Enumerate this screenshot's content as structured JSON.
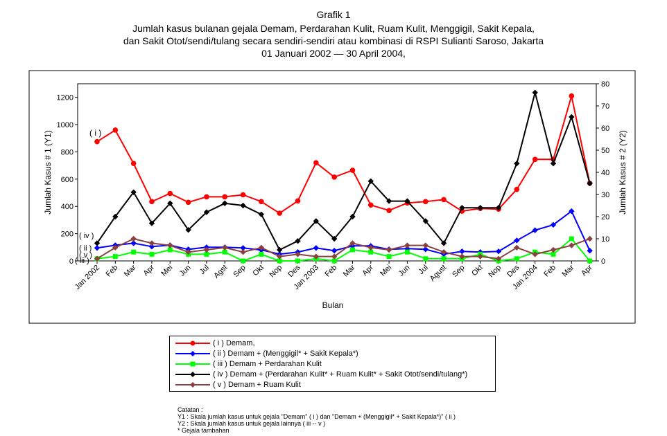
{
  "title": {
    "line1": "Grafik 1",
    "line2": "Jumlah kasus bulanan gejala Demam, Perdarahan Kulit, Ruam Kulit, Menggigil, Sakit Kepala,",
    "line3": "dan Sakit Otot/sendi/tulang secara sendiri-sendiri atau kombinasi di RSPI Sulianti Saroso, Jakarta",
    "line4": "01 Januari 2002 — 30 April 2004,"
  },
  "legend": [
    {
      "key": "i",
      "label": "( i ) Demam,"
    },
    {
      "key": "ii",
      "label": "( ii ) Demam + (Menggigil* + Sakit Kepala*)"
    },
    {
      "key": "iii",
      "label": "( iii ) Demam + Perdarahan Kulit"
    },
    {
      "key": "iv",
      "label": "( iv ) Demam + (Perdarahan Kulit* + Ruam Kulit* + Sakit Otot/sendi/tulang*)"
    },
    {
      "key": "v",
      "label": "( v ) Demam + Ruam Kulit"
    }
  ],
  "notes": {
    "line1": "Catatan :",
    "line2": "Y1 : Skala jumlah kasus untuk gejala \"Demam\" ( i )  dan \"Demam + (Menggigil* + Sakit Kepala*)\" ( ii )",
    "line3": "Y2 : Skala jumlah kasus untuk gejala lainnya ( iii -- v )",
    "line4": "* Gejala tambahan"
  },
  "chart_data": {
    "type": "line",
    "xlabel": "Bulan",
    "ylabel_left": "Jumlah Kasus # 1 (Y1)",
    "ylabel_right": "Jumlah Kasus # 2 (Y2)",
    "ylim_left": [
      0,
      1300
    ],
    "ylim_right": [
      0,
      80
    ],
    "yticks_left": [
      0,
      200,
      400,
      600,
      800,
      1000,
      1200
    ],
    "yticks_right": [
      0,
      10,
      20,
      30,
      40,
      50,
      60,
      70,
      80
    ],
    "grid": false,
    "categories": [
      "Jan 2002",
      "Feb",
      "Mar",
      "Apr",
      "Mei",
      "Jun",
      "Jul",
      "Agst",
      "Sep",
      "Okt",
      "Nop",
      "Des",
      "Jan 2003",
      "Feb",
      "Mar",
      "Apr",
      "Mei",
      "Jun",
      "Jul",
      "Agust",
      "Sep",
      "Okt",
      "Nop",
      "Des",
      "Jan 2004",
      "Feb",
      "Mar",
      "Apr"
    ],
    "series_labels": [
      "( i )",
      "( ii )",
      "( iii )",
      "( iv )",
      "( v )"
    ],
    "series": [
      {
        "key": "i",
        "axis": "left",
        "color": "#ff0000",
        "marker": "circle",
        "values": [
          875,
          960,
          715,
          435,
          495,
          430,
          470,
          470,
          485,
          435,
          350,
          440,
          720,
          615,
          665,
          410,
          370,
          425,
          435,
          450,
          365,
          385,
          380,
          525,
          745,
          745,
          1210,
          570
        ]
      },
      {
        "key": "ii",
        "axis": "left",
        "color": "#0000ff",
        "marker": "diamond",
        "values": [
          95,
          115,
          130,
          105,
          115,
          85,
          100,
          100,
          95,
          80,
          50,
          65,
          95,
          75,
          110,
          110,
          85,
          90,
          85,
          50,
          70,
          65,
          70,
          150,
          225,
          265,
          365,
          75
        ]
      },
      {
        "key": "iii",
        "axis": "right",
        "color": "#00ff00",
        "marker": "square",
        "values": [
          1,
          2,
          4,
          3,
          5,
          3,
          3,
          4,
          0,
          3,
          0,
          0,
          1,
          0,
          5,
          4,
          2,
          4,
          1,
          1,
          1,
          3,
          0,
          1,
          4,
          3,
          10,
          0
        ]
      },
      {
        "key": "iv",
        "axis": "right",
        "color": "#000000",
        "marker": "diamond",
        "values": [
          8,
          20,
          31,
          17,
          26,
          14,
          22,
          26,
          25,
          21,
          5,
          9,
          18,
          10,
          20,
          36,
          27,
          27,
          18,
          8,
          24,
          24,
          24,
          44,
          76,
          44,
          65,
          35
        ]
      },
      {
        "key": "v",
        "axis": "right",
        "color": "#8b4040",
        "marker": "diamond",
        "values": [
          1,
          6,
          10,
          8,
          7,
          4,
          5,
          6,
          4,
          6,
          2,
          3,
          2,
          2,
          8,
          6,
          5,
          7,
          7,
          4,
          2,
          2,
          1,
          6,
          3,
          5,
          7,
          10
        ]
      }
    ]
  }
}
